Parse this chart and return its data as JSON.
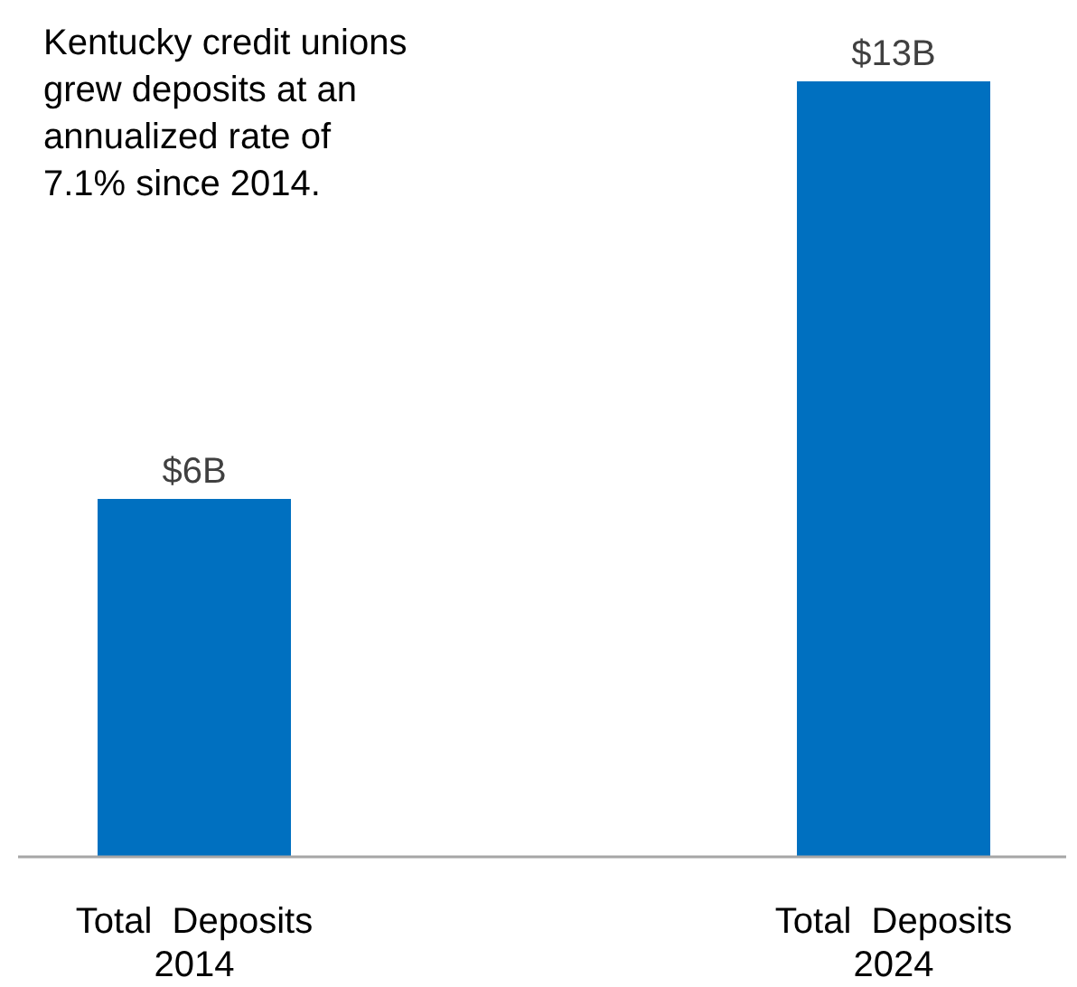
{
  "chart_data": {
    "type": "bar",
    "categories": [
      "Total  Deposits 2014",
      "Total  Deposits 2024"
    ],
    "values": [
      6,
      13
    ],
    "color": "#0070c0",
    "data_labels": true,
    "value_labels": [
      "$6B",
      "$13B"
    ],
    "annotations": [
      "Kentucky credit unions grew deposits at an annualized rate of 7.1% since 2014."
    ]
  }
}
